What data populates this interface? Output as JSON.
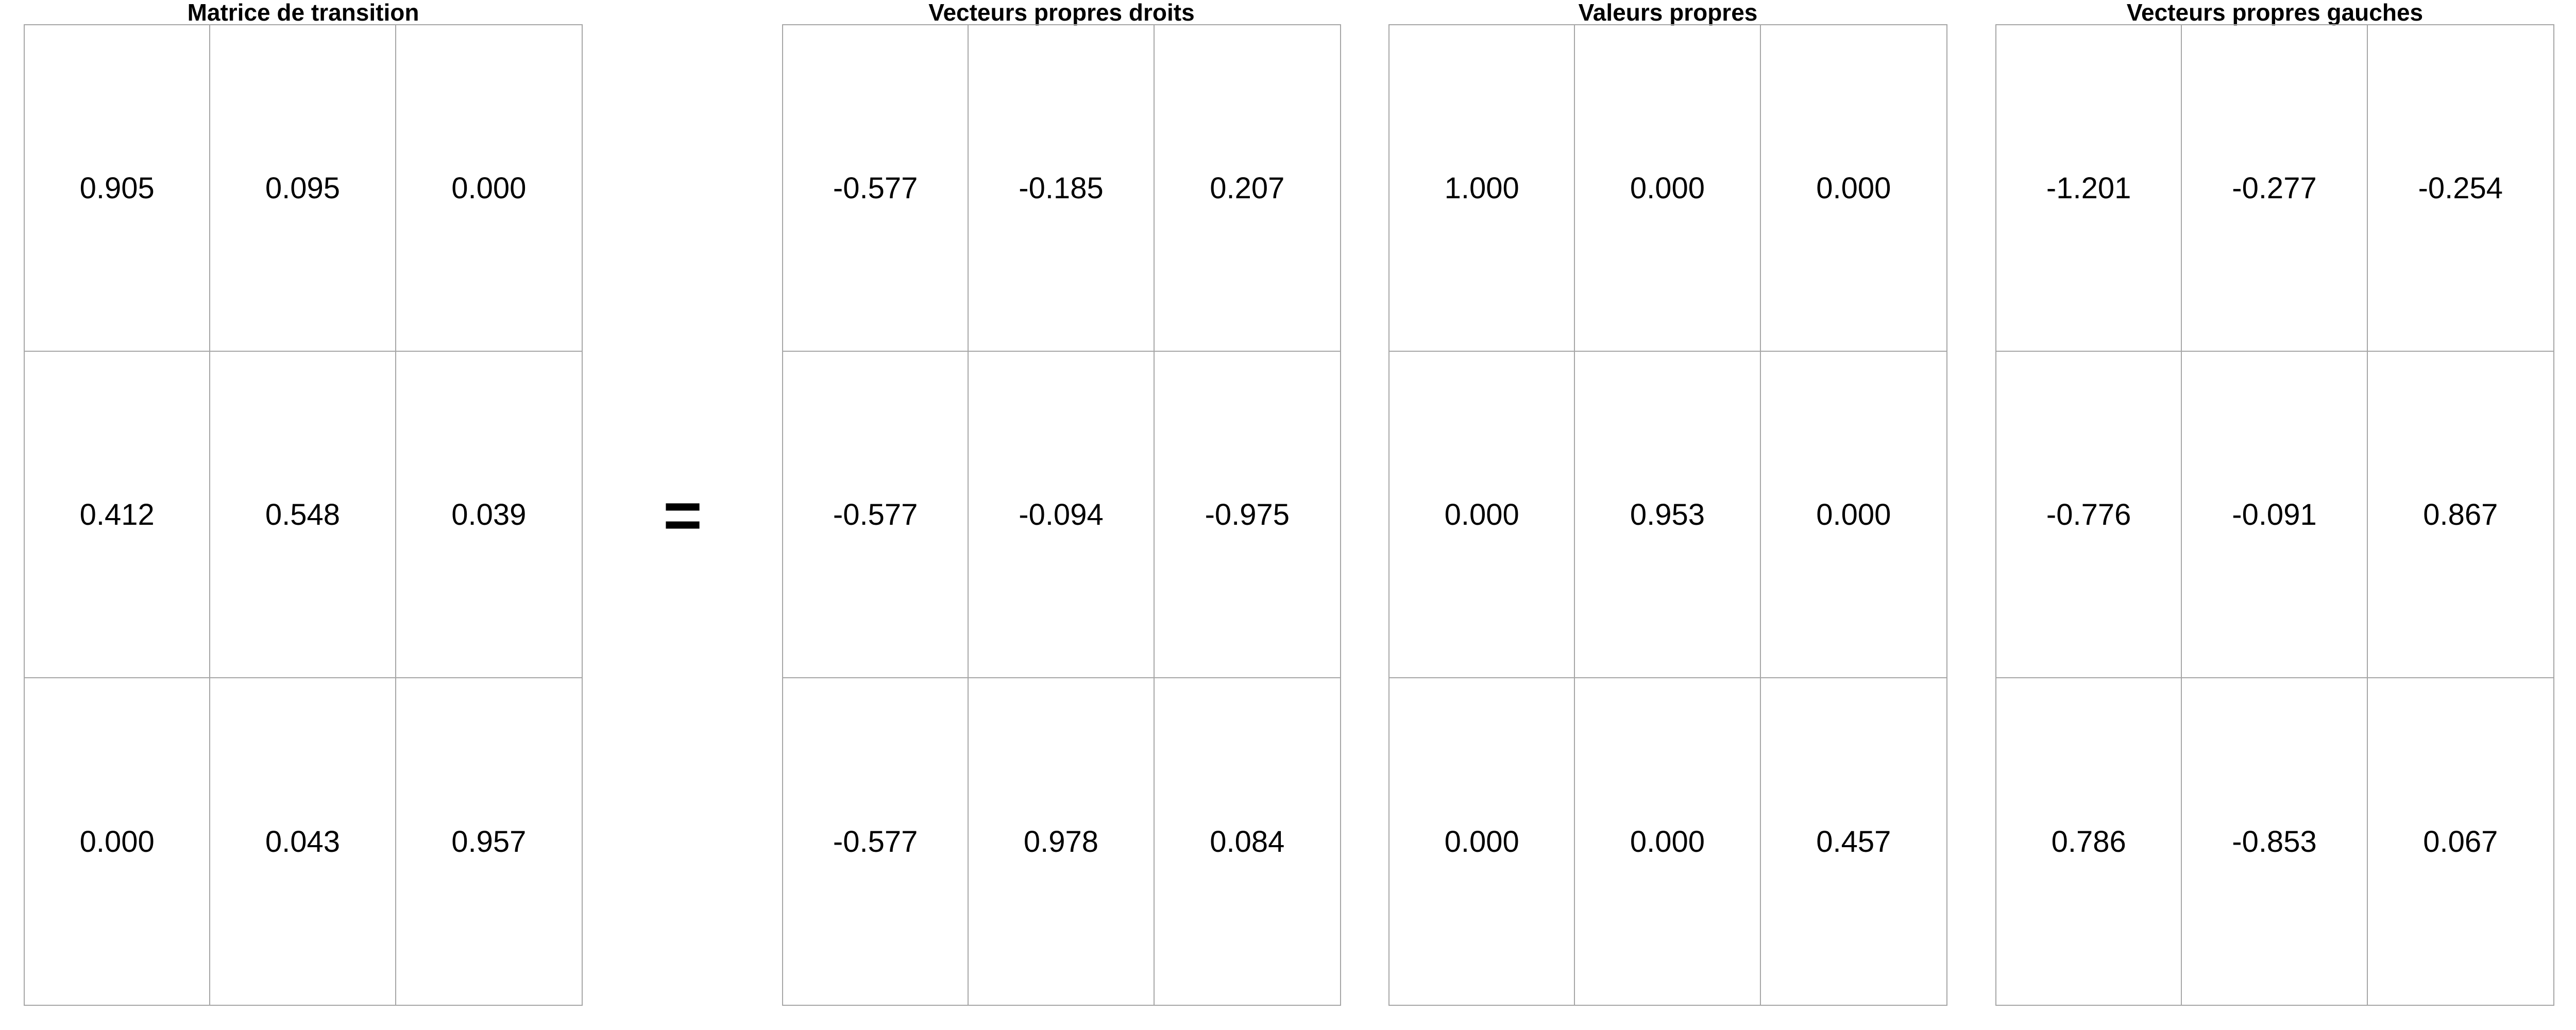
{
  "matrices": [
    {
      "title": "Matrice de transition",
      "rows": [
        [
          "0.905",
          "0.095",
          "0.000"
        ],
        [
          "0.412",
          "0.548",
          "0.039"
        ],
        [
          "0.000",
          "0.043",
          "0.957"
        ]
      ]
    },
    {
      "title": "Vecteurs propres droits",
      "rows": [
        [
          "-0.577",
          "-0.185",
          "0.207"
        ],
        [
          "-0.577",
          "-0.094",
          "-0.975"
        ],
        [
          "-0.577",
          "0.978",
          "0.084"
        ]
      ]
    },
    {
      "title": "Valeurs propres",
      "rows": [
        [
          "1.000",
          "0.000",
          "0.000"
        ],
        [
          "0.000",
          "0.953",
          "0.000"
        ],
        [
          "0.000",
          "0.000",
          "0.457"
        ]
      ]
    },
    {
      "title": "Vecteurs propres gauches",
      "rows": [
        [
          "-1.201",
          "-0.277",
          "-0.254"
        ],
        [
          "-0.776",
          "-0.091",
          "0.867"
        ],
        [
          "0.786",
          "-0.853",
          "0.067"
        ]
      ]
    }
  ],
  "operator": "="
}
